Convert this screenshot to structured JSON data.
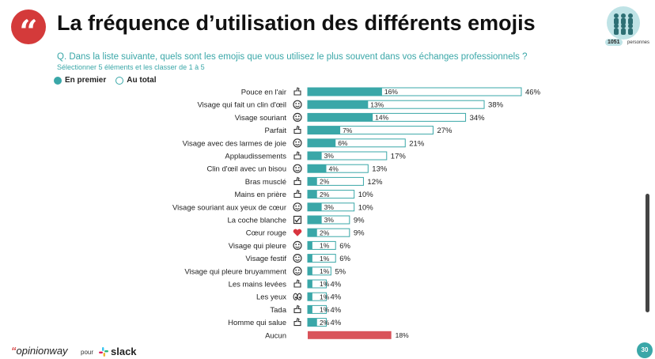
{
  "header": {
    "title": "La fréquence d’utilisation des différents emojis",
    "sample_count": "1051",
    "sample_unit": "personnes"
  },
  "question": "Q. Dans la liste suivante, quels sont les emojis que vous utilisez le plus souvent dans vos échanges professionnels ?",
  "instruction": "Sélectionner 5 éléments et les classer de 1 à 5",
  "legend": {
    "first": "En premier",
    "total": "Au total"
  },
  "colors": {
    "teal": "#3aa7a8",
    "red": "#d9535a",
    "outline": "#3aa7a8"
  },
  "footer": {
    "brand": "opinionway",
    "pour": "pour",
    "partner": "slack",
    "page": "30"
  },
  "chart_data": {
    "type": "bar",
    "orientation": "horizontal",
    "categories": [
      "Pouce en l'air",
      "Visage qui fait un clin d'œil",
      "Visage souriant",
      "Parfait",
      "Visage avec des larmes de joie",
      "Applaudissements",
      "Clin d'œil avec un bisou",
      "Bras musclé",
      "Mains en prière",
      "Visage souriant aux yeux de cœur",
      "La coche blanche",
      "Cœur rouge",
      "Visage qui pleure",
      "Visage festif",
      "Visage qui pleure bruyamment",
      "Les mains levées",
      "Les yeux",
      "Tada",
      "Homme qui salue",
      "Aucun"
    ],
    "icons": [
      "thumbs-up-icon",
      "winking-face-icon",
      "smiling-face-icon",
      "ok-hand-icon",
      "tears-of-joy-icon",
      "clapping-hands-icon",
      "kissing-wink-icon",
      "flexed-biceps-icon",
      "praying-hands-icon",
      "heart-eyes-icon",
      "check-mark-icon",
      "red-heart-icon",
      "crying-face-icon",
      "party-face-icon",
      "loudly-crying-icon",
      "raised-hands-icon",
      "eyes-icon",
      "tada-icon",
      "waving-man-icon",
      ""
    ],
    "series": [
      {
        "name": "En premier",
        "values": [
          16,
          13,
          14,
          7,
          6,
          3,
          4,
          2,
          2,
          3,
          3,
          2,
          1,
          1,
          1,
          1,
          1,
          1,
          2,
          18
        ],
        "labels": [
          "16%",
          "13%",
          "14%",
          "7%",
          "6%",
          "3%",
          "4%",
          "2%",
          "2%",
          "3%",
          "3%",
          "2%",
          "1%",
          "1%",
          "1%",
          "1%",
          "1%",
          "1%",
          "2%",
          "18%"
        ]
      },
      {
        "name": "Au total",
        "values": [
          46,
          38,
          34,
          27,
          21,
          17,
          13,
          12,
          10,
          10,
          9,
          9,
          6,
          6,
          5,
          4,
          4,
          4,
          4,
          null
        ],
        "labels": [
          "46%",
          "38%",
          "34%",
          "27%",
          "21%",
          "17%",
          "13%",
          "12%",
          "10%",
          "10%",
          "9%",
          "9%",
          "6%",
          "6%",
          "5%",
          "4%",
          "4%",
          "4%",
          "4%",
          ""
        ]
      }
    ],
    "xlim": [
      0,
      46
    ],
    "grid": false,
    "legend_position": "top-left"
  }
}
